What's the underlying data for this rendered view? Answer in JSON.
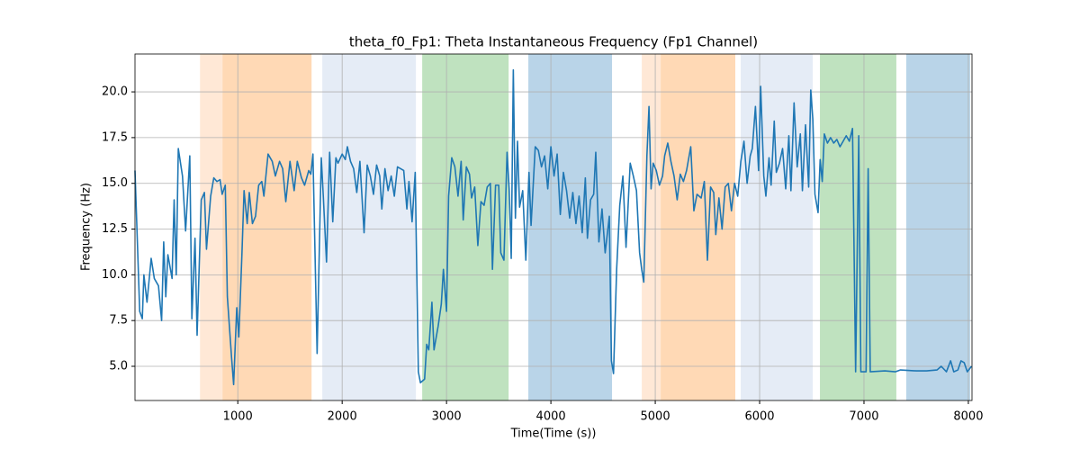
{
  "chart_data": {
    "type": "line",
    "title": "theta_f0_Fp1: Theta Instantaneous Frequency (Fp1 Channel)",
    "xlabel": "Time(Time (s))",
    "ylabel": "Frequency (Hz)",
    "color": "#1f77b4",
    "grid": true,
    "xlim": [
      15,
      8035
    ],
    "ylim": [
      3.13,
      22.07
    ],
    "xticks": [
      1000,
      2000,
      3000,
      4000,
      5000,
      6000,
      7000,
      8000
    ],
    "yticks": [
      {
        "value": 5,
        "label": "5.0"
      },
      7.5,
      {
        "value": 10,
        "label": "10.0"
      },
      12.5,
      {
        "value": 15,
        "label": "15.0"
      },
      17.5,
      {
        "value": 20,
        "label": "20.0"
      }
    ],
    "spans": [
      {
        "start": 638,
        "end": 853,
        "color": "#ffe8d6"
      },
      {
        "start": 853,
        "end": 1707,
        "color": "#ffd9b5"
      },
      {
        "start": 1810,
        "end": 2707,
        "color": "#e5ecf6"
      },
      {
        "start": 2767,
        "end": 3595,
        "color": "#bfe2bf"
      },
      {
        "start": 3784,
        "end": 4586,
        "color": "#b9d4e8"
      },
      {
        "start": 4871,
        "end": 5052,
        "color": "#ffe8d6"
      },
      {
        "start": 5052,
        "end": 5767,
        "color": "#ffd9b5"
      },
      {
        "start": 5819,
        "end": 6509,
        "color": "#e5ecf6"
      },
      {
        "start": 6578,
        "end": 7310,
        "color": "#bfe2bf"
      },
      {
        "start": 7405,
        "end": 8017,
        "color": "#b9d4e8"
      }
    ],
    "x": [
      15,
      60,
      85,
      100,
      130,
      170,
      200,
      240,
      270,
      290,
      310,
      330,
      370,
      390,
      410,
      430,
      470,
      500,
      540,
      560,
      590,
      610,
      650,
      680,
      700,
      740,
      770,
      800,
      830,
      850,
      880,
      900,
      940,
      960,
      990,
      1010,
      1040,
      1060,
      1090,
      1110,
      1140,
      1170,
      1200,
      1230,
      1250,
      1290,
      1330,
      1360,
      1400,
      1430,
      1460,
      1500,
      1540,
      1570,
      1610,
      1640,
      1680,
      1700,
      1720,
      1760,
      1800,
      1820,
      1850,
      1880,
      1910,
      1940,
      1960,
      2000,
      2030,
      2050,
      2080,
      2110,
      2140,
      2170,
      2210,
      2240,
      2270,
      2300,
      2330,
      2360,
      2380,
      2410,
      2440,
      2470,
      2500,
      2530,
      2560,
      2590,
      2620,
      2640,
      2670,
      2700,
      2730,
      2750,
      2790,
      2810,
      2830,
      2860,
      2880,
      2920,
      2950,
      2970,
      3000,
      3020,
      3050,
      3080,
      3110,
      3140,
      3160,
      3190,
      3220,
      3240,
      3270,
      3300,
      3330,
      3360,
      3390,
      3420,
      3440,
      3470,
      3500,
      3520,
      3550,
      3580,
      3600,
      3620,
      3640,
      3660,
      3680,
      3700,
      3730,
      3760,
      3790,
      3810,
      3850,
      3880,
      3910,
      3940,
      3970,
      4000,
      4030,
      4060,
      4090,
      4120,
      4150,
      4180,
      4210,
      4240,
      4270,
      4300,
      4330,
      4350,
      4380,
      4410,
      4430,
      4460,
      4490,
      4520,
      4560,
      4580,
      4600,
      4630,
      4660,
      4690,
      4720,
      4760,
      4790,
      4820,
      4850,
      4870,
      4890,
      4920,
      4940,
      4960,
      4980,
      5010,
      5040,
      5070,
      5090,
      5120,
      5150,
      5180,
      5210,
      5240,
      5270,
      5300,
      5340,
      5370,
      5400,
      5440,
      5470,
      5500,
      5530,
      5560,
      5580,
      5610,
      5640,
      5670,
      5700,
      5730,
      5760,
      5790,
      5820,
      5850,
      5880,
      5910,
      5930,
      5960,
      5990,
      6010,
      6040,
      6060,
      6090,
      6110,
      6140,
      6160,
      6190,
      6220,
      6250,
      6280,
      6300,
      6330,
      6360,
      6390,
      6410,
      6440,
      6470,
      6490,
      6510,
      6530,
      6560,
      6580,
      6600,
      6620,
      6650,
      6680,
      6710,
      6740,
      6770,
      6800,
      6830,
      6860,
      6890,
      6920,
      6950,
      6970,
      7020,
      7040,
      7060,
      7200,
      7300,
      7350,
      7500,
      7600,
      7700,
      7740,
      7790,
      7830,
      7860,
      7900,
      7930,
      7960,
      7990,
      8030
    ],
    "values": [
      15.7,
      8,
      7.6,
      10,
      8.5,
      10.9,
      9.8,
      9.4,
      7.5,
      11.8,
      8.8,
      11.1,
      9.8,
      14.1,
      10,
      16.9,
      15.4,
      12.4,
      16.5,
      7.6,
      12,
      6.7,
      14.1,
      14.5,
      11.4,
      14.3,
      15.3,
      15.1,
      15.2,
      14.4,
      14.9,
      8.8,
      5.5,
      4,
      8.2,
      6.6,
      11.2,
      14.6,
      12.8,
      14.5,
      12.8,
      13.2,
      14.9,
      15.1,
      14.3,
      16.6,
      16.2,
      15.4,
      16.2,
      15.8,
      14,
      16.2,
      14.6,
      16.2,
      15.3,
      14.9,
      15.7,
      15.5,
      16.6,
      5.7,
      16.4,
      14.2,
      10.7,
      16.7,
      12.9,
      16.4,
      16.1,
      16.6,
      16.3,
      17,
      16.2,
      15.8,
      14.5,
      16.2,
      12.3,
      16,
      15.4,
      14.4,
      16,
      15.4,
      13.6,
      15.8,
      14.6,
      15.4,
      14.3,
      15.9,
      15.8,
      15.7,
      13.6,
      15.1,
      12.9,
      15.6,
      4.7,
      4.1,
      4.3,
      6.2,
      5.9,
      8.5,
      5.9,
      7.2,
      8.4,
      10.3,
      8,
      14.3,
      16.4,
      15.9,
      14.3,
      16.2,
      13,
      15.9,
      15.5,
      14.2,
      14.8,
      11.6,
      14,
      13.8,
      14.8,
      15,
      10.3,
      14.9,
      14.9,
      11.2,
      10.8,
      16.7,
      14.7,
      10.9,
      21.2,
      13.1,
      17.3,
      13.7,
      14.6,
      10.8,
      15.6,
      12.7,
      17,
      16.8,
      15.9,
      16.5,
      14.7,
      17,
      15.4,
      16.6,
      13.3,
      15.6,
      14.6,
      13.1,
      14.5,
      12.8,
      14.3,
      12.3,
      15.3,
      12,
      14.1,
      14.4,
      16.7,
      11.8,
      13.6,
      11.2,
      13.2,
      5.3,
      4.6,
      10.3,
      13.8,
      15.4,
      11.5,
      16.1,
      15.4,
      14.6,
      11.2,
      10.3,
      9.6,
      16.5,
      19.2,
      14.7,
      16.1,
      15.7,
      14.9,
      15.4,
      16.5,
      17.2,
      16.2,
      15.4,
      14.1,
      15.5,
      15.1,
      15.7,
      17,
      13.5,
      14.4,
      14.2,
      15.1,
      10.8,
      14.8,
      14.5,
      12.2,
      14.2,
      12.5,
      14.8,
      15,
      13.5,
      15,
      14.3,
      16.2,
      17.3,
      15,
      16.5,
      16.9,
      19.2,
      15.7,
      20.3,
      15.4,
      14.3,
      16.4,
      14.9,
      18.4,
      15.6,
      16.1,
      16.9,
      14.7,
      17.6,
      14.6,
      19.4,
      15.9,
      17.7,
      14.6,
      18.2,
      14.8,
      20.1,
      18.5,
      14.4,
      13.4,
      16.3,
      15.1,
      17.7,
      17.2,
      17.5,
      17.2,
      17.4,
      17,
      17.3,
      17.6,
      17.3,
      18,
      4.7,
      17.6,
      4.7,
      4.7,
      15.8,
      4.7,
      4.75,
      4.7,
      4.8,
      4.75,
      4.75,
      4.8,
      5,
      4.7,
      5.3,
      4.7,
      4.8,
      5.3,
      5.2,
      4.7,
      5
    ]
  }
}
